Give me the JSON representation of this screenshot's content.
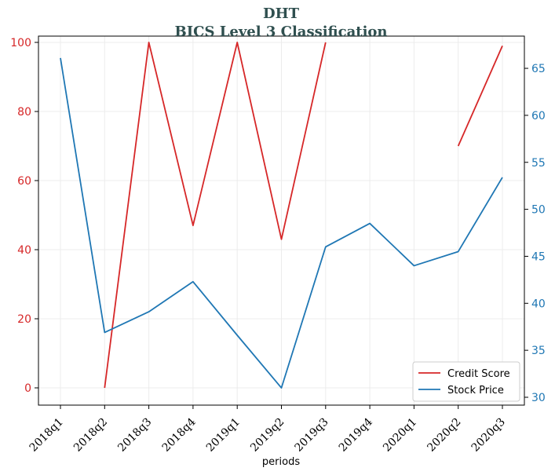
{
  "chart_data": {
    "type": "line",
    "title": "DHT",
    "subtitle": "BICS Level 3 Classification",
    "xlabel": "periods",
    "categories": [
      "2018q1",
      "2018q2",
      "2018q3",
      "2018q4",
      "2019q1",
      "2019q2",
      "2019q3",
      "2019q4",
      "2020q1",
      "2020q2",
      "2020q3"
    ],
    "ylim_left": [
      0,
      100
    ],
    "yticks_left": [
      0,
      20,
      40,
      60,
      80,
      100
    ],
    "ylim_right": [
      30,
      65
    ],
    "yticks_right": [
      30,
      35,
      40,
      45,
      50,
      55,
      60,
      65
    ],
    "grid": true,
    "legend_position": "lower-right",
    "series": [
      {
        "name": "Credit Score",
        "axis": "left",
        "color": "#d62728",
        "values": [
          null,
          0,
          100,
          47,
          100,
          43,
          100,
          null,
          null,
          70,
          99
        ]
      },
      {
        "name": "Stock Price",
        "axis": "right",
        "color": "#1f77b4",
        "values": [
          66.1,
          36.9,
          39.1,
          42.3,
          36.6,
          31.0,
          46.0,
          48.5,
          44.0,
          45.5,
          53.4
        ]
      }
    ]
  }
}
